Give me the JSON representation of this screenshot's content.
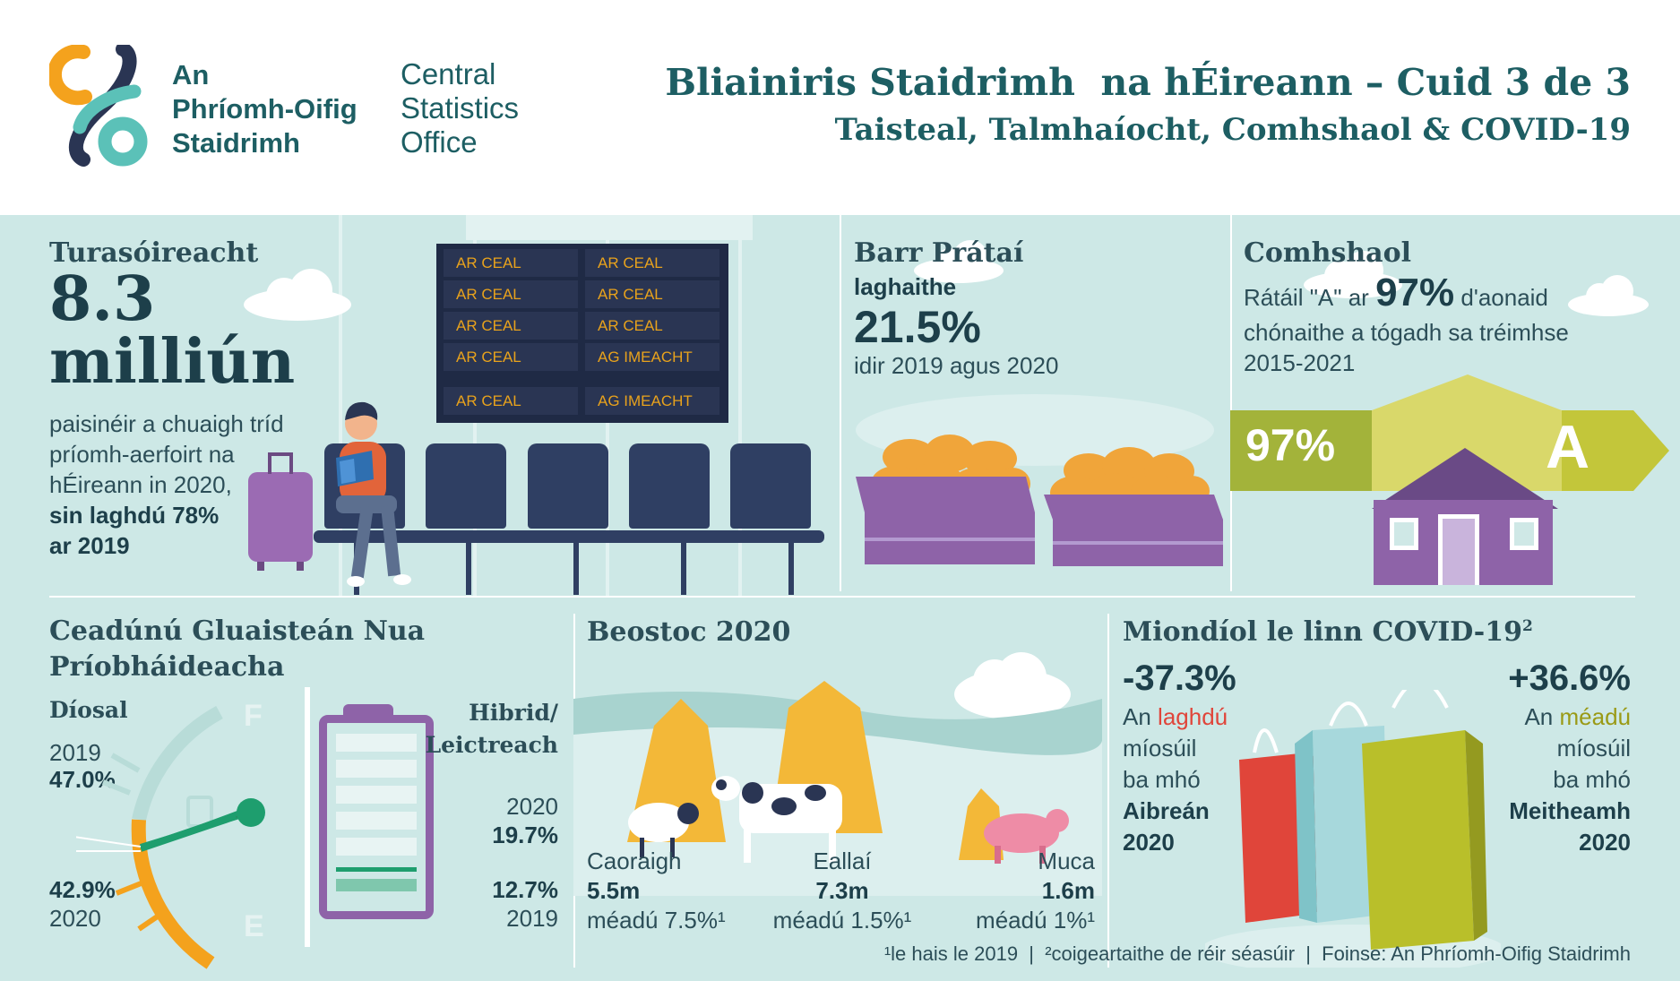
{
  "header": {
    "org_ga_line1": "An",
    "org_ga_line2": "Phríomh-Oifig",
    "org_ga_line3": "Staidrimh",
    "org_en_line1": "Central",
    "org_en_line2": "Statistics",
    "org_en_line3": "Office",
    "title": "Bliainiris Staidrimh  na hÉireann – Cuid 3 de 3",
    "subtitle": "Taisteal, Talmhaíocht, Comhshaol & COVID-19"
  },
  "tourism": {
    "heading": "Turasóireacht",
    "big_number": "8.3",
    "big_unit": "milliún",
    "desc1": "paisinéir a chuaigh tríd",
    "desc2": "príomh-aerfoirt na",
    "desc3": "hÉireann in 2020,",
    "desc4": "sin laghdú 78%",
    "desc5": "ar 2019",
    "board": [
      [
        "AR CEAL",
        "AR CEAL"
      ],
      [
        "AR CEAL",
        "AR CEAL"
      ],
      [
        "AR CEAL",
        "AR CEAL"
      ],
      [
        "AR CEAL",
        "AG IMEACHT"
      ],
      [
        "AR CEAL",
        "AG IMEACHT"
      ]
    ]
  },
  "potatoes": {
    "heading": "Barr Prátaí",
    "sub": "laghaithe",
    "value": "21.5%",
    "period": "idir 2019 agus 2020"
  },
  "environment": {
    "heading": "Comhshaol",
    "line1_pre": "Rátáil \"A\" ar",
    "line1_value": "97%",
    "line1_post": "d'aonaid",
    "line2": "chónaithe a tógadh sa tréimhse",
    "line3": "2015-2021",
    "banner_percent": "97%",
    "banner_grade": "A"
  },
  "cars": {
    "heading1": "Ceadúnú Gluaisteán Nua",
    "heading2": "Príobháideacha",
    "diesel_label": "Díosal",
    "diesel_2019_year": "2019",
    "diesel_2019_value": "47.0%",
    "diesel_2020_value": "42.9%",
    "diesel_2020_year": "2020",
    "gauge_full": "F",
    "gauge_empty": "E",
    "hybrid_label1": "Hibrid/",
    "hybrid_label2": "Leictreach",
    "hybrid_2020_year": "2020",
    "hybrid_2020_value": "19.7%",
    "hybrid_2019_value": "12.7%",
    "hybrid_2019_year": "2019",
    "hybrid_2020_level": 0.197,
    "hybrid_2019_level": 0.127
  },
  "livestock": {
    "heading": "Beostoc 2020",
    "items": [
      {
        "name": "Caoraigh",
        "value": "5.5m",
        "change": "méadú 7.5%¹"
      },
      {
        "name": "Eallaí",
        "value": "7.3m",
        "change": "méadú 1.5%¹"
      },
      {
        "name": "Muca",
        "value": "1.6m",
        "change": "méadú 1%¹"
      }
    ]
  },
  "retail": {
    "heading": "Miondíol le linn COVID-19",
    "heading_sup": "2",
    "left_value": "-37.3%",
    "left_l1_pre": "An",
    "left_l1_word": "laghdú",
    "left_l2": "míosúil",
    "left_l3": "ba mhó",
    "left_l4": "Aibreán",
    "left_l5": "2020",
    "right_value": "+36.6%",
    "right_l1_pre": "An",
    "right_l1_word": "méadú",
    "right_l2": "míosúil",
    "right_l3": "ba mhó",
    "right_l4": "Meitheamh",
    "right_l5": "2020"
  },
  "footer": {
    "text": "¹le hais le 2019  |  ²coigeartaithe de réir séasúir  |  Foinse: An Phríomh-Oifig Staidrimh"
  },
  "colors": {
    "teal_dark": "#1d5e63",
    "bg_light": "#cde8e6",
    "accent_red": "#e0453a",
    "accent_olive": "#9a9a16",
    "energy_green": "#bfc23a",
    "house_purple": "#8e63a8",
    "board_amber": "#e8a21c"
  }
}
